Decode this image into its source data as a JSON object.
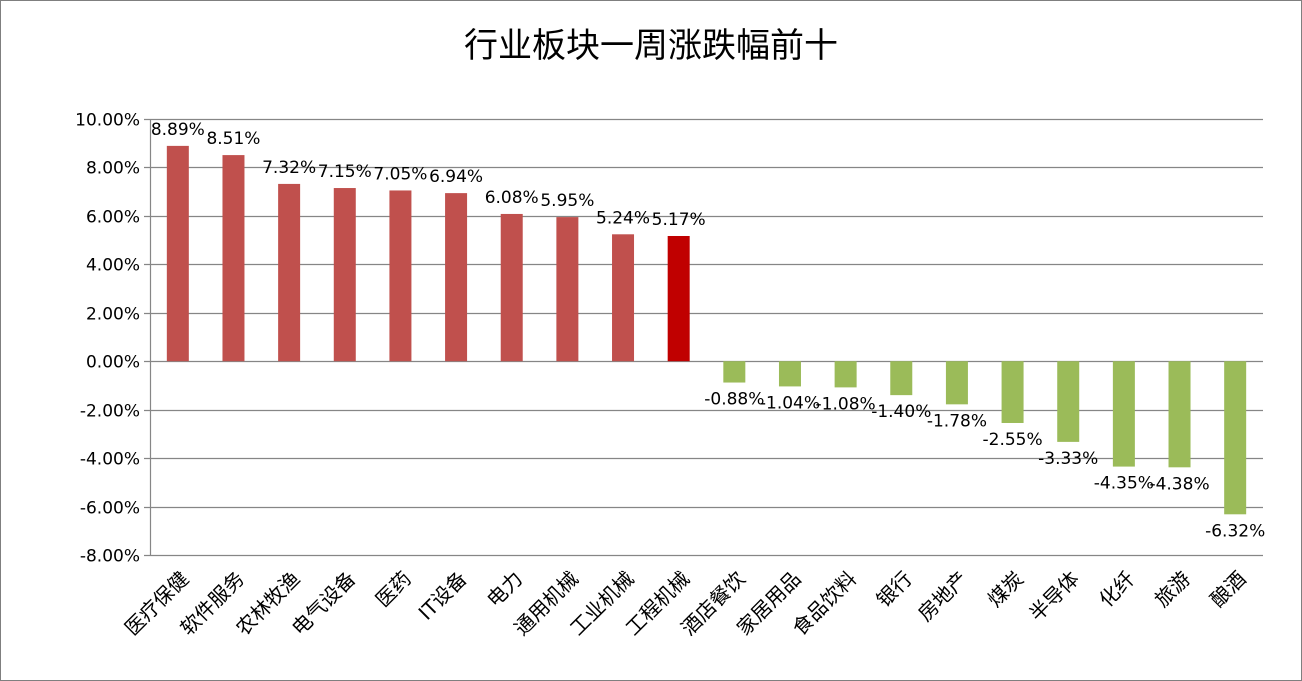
{
  "chart_data": {
    "type": "bar",
    "title": "行业板块一周涨跌幅前十",
    "categories": [
      "医疗保健",
      "软件服务",
      "农林牧渔",
      "电气设备",
      "医药",
      "IT设备",
      "电力",
      "通用机械",
      "工业机械",
      "工程机械",
      "酒店餐饮",
      "家居用品",
      "食品饮料",
      "银行",
      "房地产",
      "煤炭",
      "半导体",
      "化纤",
      "旅游",
      "酿酒"
    ],
    "values": [
      8.89,
      8.51,
      7.32,
      7.15,
      7.05,
      6.94,
      6.08,
      5.95,
      5.24,
      5.17,
      -0.88,
      -1.04,
      -1.08,
      -1.4,
      -1.78,
      -2.55,
      -3.33,
      -4.35,
      -4.38,
      -6.32
    ],
    "value_labels": [
      "8.89%",
      "8.51%",
      "7.32%",
      "7.15%",
      "7.05%",
      "6.94%",
      "6.08%",
      "5.95%",
      "5.24%",
      "5.17%",
      "-0.88%",
      "-1.04%",
      "-1.08%",
      "-1.40%",
      "-1.78%",
      "-2.55%",
      "-3.33%",
      "-4.35%",
      "-4.38%",
      "-6.32%"
    ],
    "ylim": [
      -8,
      10
    ],
    "yticks": [
      10,
      8,
      6,
      4,
      2,
      0,
      -2,
      -4,
      -6,
      -8
    ],
    "ytick_labels": [
      "10.00%",
      "8.00%",
      "6.00%",
      "4.00%",
      "2.00%",
      "0.00%",
      "-2.00%",
      "-4.00%",
      "-6.00%",
      "-8.00%"
    ],
    "grid": true,
    "legend": "none",
    "colors": {
      "positive": "#c0504d",
      "highlight": "#c00000",
      "negative": "#9bbb59",
      "grid": "#868686"
    },
    "highlight_index": 9
  }
}
